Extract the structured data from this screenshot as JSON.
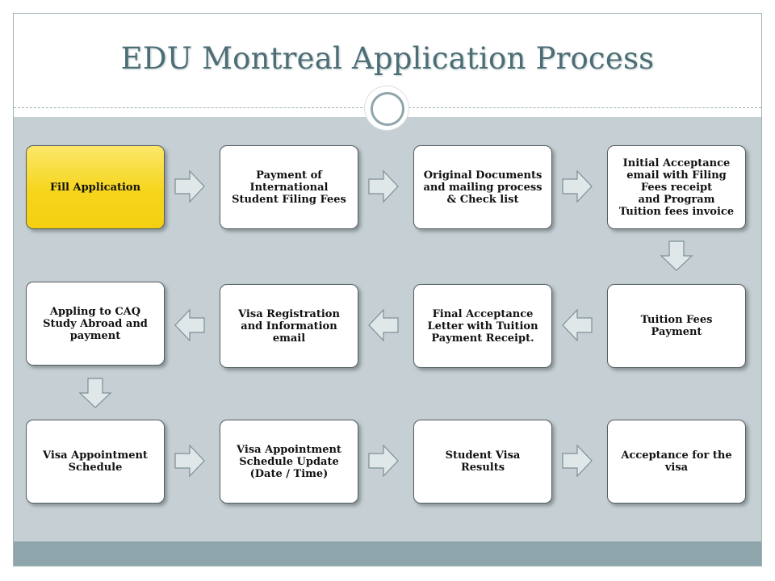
{
  "title": "EDU Montreal Application Process",
  "colors": {
    "title": "#4d6d74",
    "panel": "#c6d0d4",
    "footer": "#8ea6ab",
    "highlight": "#f6d51c",
    "arrow_fill": "#dfe7e9",
    "arrow_stroke": "#7c8f94"
  },
  "steps": [
    {
      "label": "Fill Application",
      "highlight": true
    },
    {
      "label": "Payment of\nInternational\nStudent Filing Fees"
    },
    {
      "label": "Original Documents\nand mailing process\n& Check list"
    },
    {
      "label": "Initial Acceptance\nemail with Filing\nFees  receipt\nand Program\nTuition fees invoice"
    },
    {
      "label": "Appling to CAQ\nStudy Abroad and\npayment"
    },
    {
      "label": "Visa Registration\nand Information\nemail"
    },
    {
      "label": "Final Acceptance\nLetter with Tuition\nPayment Receipt."
    },
    {
      "label": "Tuition Fees\nPayment"
    },
    {
      "label": "Visa Appointment\nSchedule"
    },
    {
      "label": "Visa Appointment\nSchedule Update\n(Date / Time)"
    },
    {
      "label": "Student Visa Results"
    },
    {
      "label": "Acceptance for the\nvisa"
    }
  ],
  "arrows": [
    {
      "dir": "right"
    },
    {
      "dir": "right"
    },
    {
      "dir": "right"
    },
    {
      "dir": "down"
    },
    {
      "dir": "left"
    },
    {
      "dir": "left"
    },
    {
      "dir": "left"
    },
    {
      "dir": "down"
    },
    {
      "dir": "right"
    },
    {
      "dir": "right"
    },
    {
      "dir": "right"
    }
  ]
}
